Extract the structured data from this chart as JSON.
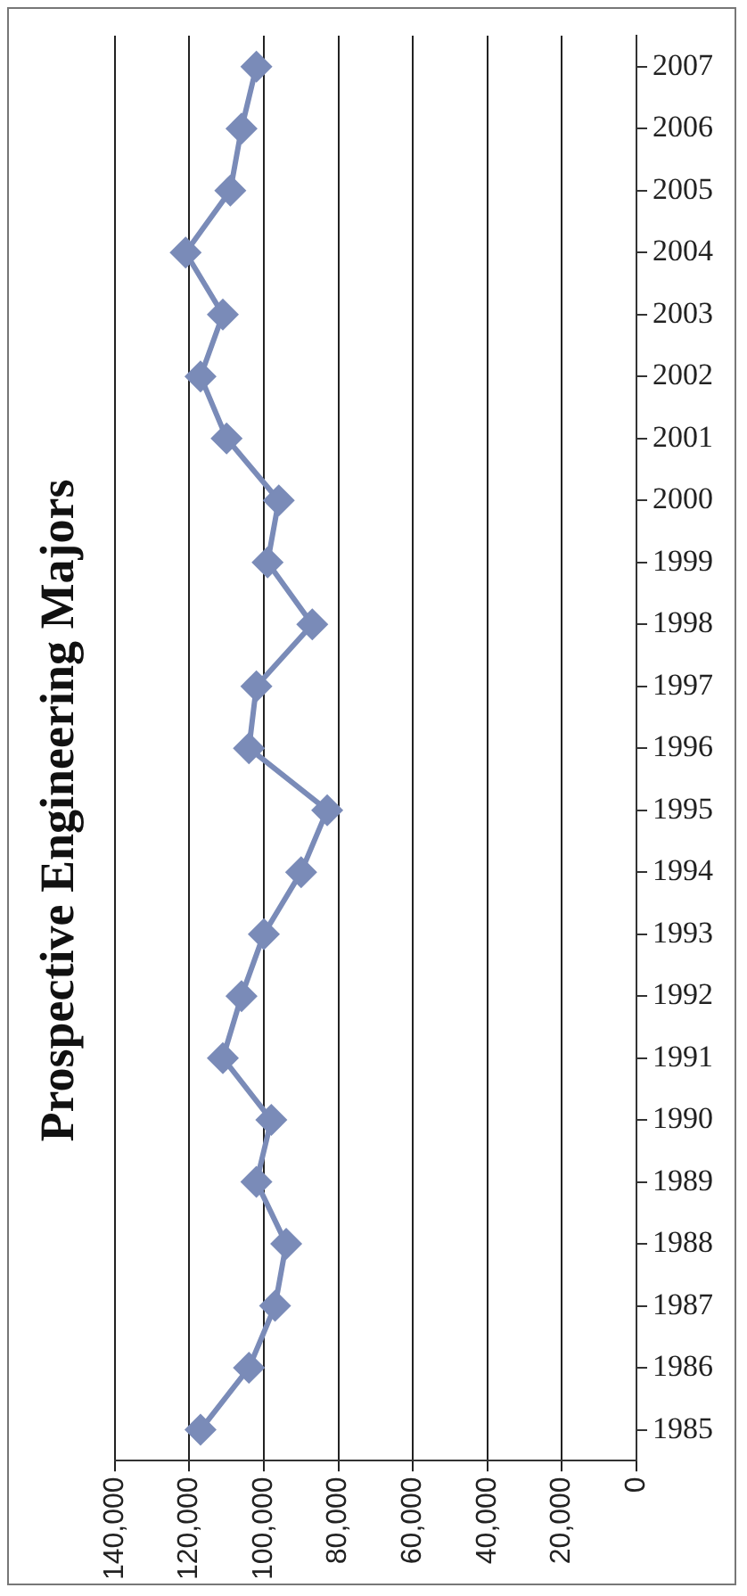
{
  "chart_data": {
    "type": "line",
    "title": "Prospective Engineering Majors",
    "orientation": "horizontal",
    "categories": [
      "2007",
      "2006",
      "2005",
      "2004",
      "2003",
      "2002",
      "2001",
      "2000",
      "1999",
      "1998",
      "1997",
      "1996",
      "1995",
      "1994",
      "1993",
      "1992",
      "1991",
      "1990",
      "1989",
      "1988",
      "1987",
      "1986",
      "1985"
    ],
    "series": [
      {
        "color": "#7a8bb8",
        "values": [
          102000,
          106000,
          109000,
          121000,
          111000,
          117000,
          110000,
          96000,
          99000,
          87000,
          102000,
          104000,
          83000,
          90000,
          100000,
          106000,
          111000,
          98000,
          102000,
          94000,
          97000,
          104000,
          117000
        ]
      }
    ],
    "xlim": [
      140000,
      0
    ],
    "xticks": [
      {
        "value": 140000,
        "label": "140,000"
      },
      {
        "value": 120000,
        "label": "120,000"
      },
      {
        "value": 100000,
        "label": "100,000"
      },
      {
        "value": 80000,
        "label": "80,000"
      },
      {
        "value": 60000,
        "label": "60,000"
      },
      {
        "value": 40000,
        "label": "40,000"
      },
      {
        "value": 20000,
        "label": "20,000"
      },
      0
    ],
    "grid": "x",
    "legend": false,
    "marker": "diamond",
    "line_style": "solid"
  }
}
